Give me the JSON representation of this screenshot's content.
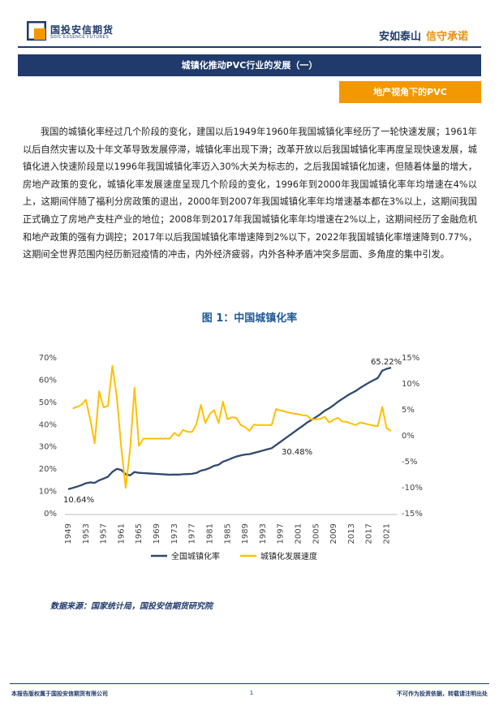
{
  "header": {
    "company_cn": "国投安信期货",
    "company_en": "SDIC ESSENCE FUTURES",
    "slogan_a": "安如泰山",
    "slogan_b": "信守承诺"
  },
  "banner": {
    "title": "城镇化推动PVC行业的发展（一）"
  },
  "sub_banner": {
    "title": "地产视角下的PVC"
  },
  "body": {
    "paragraph": "我国的城镇化率经过几个阶段的变化，建国以后1949年1960年我国城镇化率经历了一轮快速发展；1961年以后自然灾害以及十年文革导致发展停滞，城镇化率出现下滑；改革开放以后我国城镇化率再度呈现快速发展，城镇化进入快速阶段是以1996年我国城镇化率迈入30%大关为标志的，之后我国城镇化加速，但随着体量的增大，房地产政策的变化，城镇化率发展速度呈现几个阶段的变化，1996年到2000年我国城镇化率年均增速在4%以上，这期间伴随了福利分房政策的退出，2000年到2007年我国城镇化率年均增速基本都在3%以上，这期间我国正式确立了房地产支柱产业的地位；2008年到2017年我国城镇化率年均增速在2%以上，这期间经历了金融危机和地产政策的强有力调控；2017年以后我国城镇化率增速降到2%以下，2022年我国城镇化率增速降到0.77%，这期间全世界范围内经历新冠疫情的冲击，内外经济疲弱，内外各种矛盾冲突多层面、多角度的集中引发。"
  },
  "figure": {
    "title": "图 1：中国城镇化率"
  },
  "chart_data": {
    "type": "line",
    "x_ticks": [
      "1949",
      "1953",
      "1957",
      "1961",
      "1965",
      "1969",
      "1973",
      "1977",
      "1981",
      "1985",
      "1989",
      "1993",
      "1997",
      "2001",
      "2005",
      "2009",
      "2013",
      "2017",
      "2021"
    ],
    "y_left": {
      "range": [
        0,
        70
      ],
      "ticks": [
        "0%",
        "10%",
        "20%",
        "30%",
        "40%",
        "50%",
        "60%",
        "70%"
      ]
    },
    "y_right": {
      "range": [
        -15,
        15
      ],
      "ticks": [
        "-15%",
        "-10%",
        "-5%",
        "0%",
        "5%",
        "10%",
        "15%"
      ]
    },
    "annotations": {
      "start": "10.64%",
      "mid": "30.48%",
      "end": "65.22%"
    },
    "legend_position": "bottom",
    "series": [
      {
        "name": "全国城镇化率",
        "axis": "left",
        "color": "#2e4a6e",
        "x": [
          1949,
          1950,
          1951,
          1952,
          1953,
          1954,
          1955,
          1956,
          1957,
          1958,
          1959,
          1960,
          1961,
          1962,
          1963,
          1964,
          1965,
          1966,
          1967,
          1968,
          1969,
          1970,
          1971,
          1972,
          1973,
          1974,
          1975,
          1976,
          1977,
          1978,
          1979,
          1980,
          1981,
          1982,
          1983,
          1984,
          1985,
          1986,
          1987,
          1988,
          1989,
          1990,
          1991,
          1992,
          1993,
          1994,
          1995,
          1996,
          1997,
          1998,
          1999,
          2000,
          2001,
          2002,
          2003,
          2004,
          2005,
          2006,
          2007,
          2008,
          2009,
          2010,
          2011,
          2012,
          2013,
          2014,
          2015,
          2016,
          2017,
          2018,
          2019,
          2020,
          2021,
          2022
        ],
        "values": [
          10.64,
          11.18,
          11.78,
          12.46,
          13.31,
          13.69,
          13.48,
          14.62,
          15.39,
          16.25,
          18.41,
          19.75,
          19.29,
          17.33,
          16.84,
          18.37,
          17.98,
          17.86,
          17.74,
          17.62,
          17.5,
          17.38,
          17.26,
          17.13,
          17.2,
          17.16,
          17.34,
          17.44,
          17.55,
          17.92,
          18.96,
          19.39,
          20.16,
          21.13,
          21.62,
          23.01,
          23.71,
          24.52,
          25.32,
          25.81,
          26.21,
          26.41,
          26.94,
          27.46,
          27.99,
          28.51,
          29.04,
          30.48,
          31.91,
          33.35,
          34.78,
          36.22,
          37.66,
          39.09,
          40.53,
          41.76,
          42.99,
          44.34,
          45.89,
          46.99,
          48.34,
          49.95,
          51.27,
          52.57,
          53.73,
          54.77,
          56.1,
          57.35,
          58.52,
          59.58,
          60.6,
          63.89,
          64.72,
          65.22
        ]
      },
      {
        "name": "城镇化发展速度",
        "axis": "right",
        "color": "#ffc000",
        "x": [
          1950,
          1951,
          1952,
          1953,
          1954,
          1955,
          1956,
          1957,
          1958,
          1959,
          1960,
          1961,
          1962,
          1963,
          1964,
          1965,
          1966,
          1967,
          1968,
          1969,
          1970,
          1971,
          1972,
          1973,
          1974,
          1975,
          1976,
          1977,
          1978,
          1979,
          1980,
          1981,
          1982,
          1983,
          1984,
          1985,
          1986,
          1987,
          1988,
          1989,
          1990,
          1991,
          1992,
          1993,
          1994,
          1995,
          1996,
          1997,
          1998,
          1999,
          2000,
          2001,
          2002,
          2003,
          2004,
          2005,
          2006,
          2007,
          2008,
          2009,
          2010,
          2011,
          2012,
          2013,
          2014,
          2015,
          2016,
          2017,
          2018,
          2019,
          2020,
          2021,
          2022
        ],
        "values": [
          5.1,
          5.4,
          5.8,
          6.8,
          2.9,
          -1.6,
          8.4,
          5.3,
          5.6,
          13.3,
          7.3,
          -2.3,
          -10.2,
          -2.8,
          9.1,
          -2.1,
          -0.7,
          -0.7,
          -0.7,
          -0.7,
          -0.7,
          -0.7,
          -0.7,
          0.4,
          -0.2,
          1.0,
          0.6,
          0.6,
          2.1,
          5.8,
          2.3,
          4.0,
          4.8,
          2.3,
          6.4,
          3.0,
          3.4,
          3.3,
          1.9,
          1.5,
          0.8,
          2.0,
          1.9,
          1.9,
          1.9,
          1.9,
          5.0,
          4.7,
          4.5,
          4.3,
          4.1,
          4.0,
          3.8,
          3.7,
          3.0,
          3.0,
          3.1,
          3.5,
          2.4,
          2.9,
          3.3,
          2.6,
          2.5,
          2.2,
          1.9,
          2.4,
          2.2,
          2.0,
          1.8,
          1.7,
          5.4,
          1.3,
          0.77
        ]
      }
    ]
  },
  "source": {
    "text": "数据来源：国家统计局，国投安信期货研究院"
  },
  "footer": {
    "left": "本报告版权属于国投安信期货有限公司",
    "page": "1",
    "right": "不可作为投资依据，转载请注明出处"
  }
}
